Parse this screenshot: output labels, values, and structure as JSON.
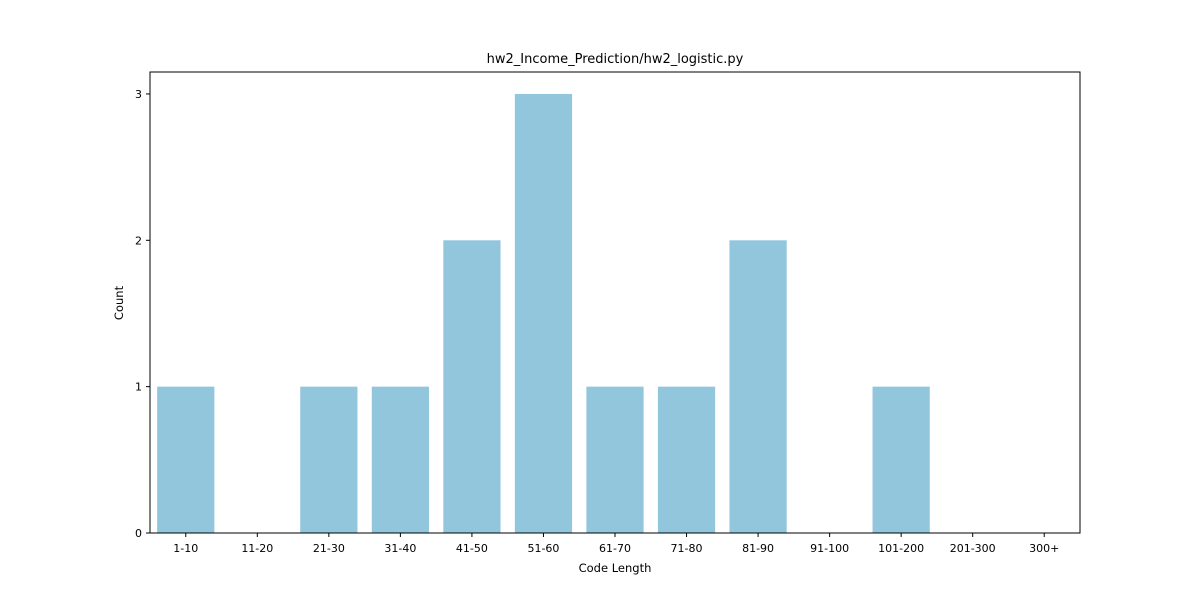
{
  "chart_data": {
    "type": "bar",
    "title": "hw2_Income_Prediction/hw2_logistic.py",
    "xlabel": "Code Length",
    "ylabel": "Count",
    "categories": [
      "1-10",
      "11-20",
      "21-30",
      "31-40",
      "41-50",
      "51-60",
      "61-70",
      "71-80",
      "81-90",
      "91-100",
      "101-200",
      "201-300",
      "300+"
    ],
    "values": [
      1,
      0,
      1,
      1,
      2,
      3,
      1,
      1,
      2,
      0,
      1,
      0,
      0
    ],
    "ylim": [
      0,
      3.15
    ],
    "yticks": [
      0,
      1,
      2,
      3
    ],
    "grid": false,
    "bar_color": "#92c6dd"
  }
}
